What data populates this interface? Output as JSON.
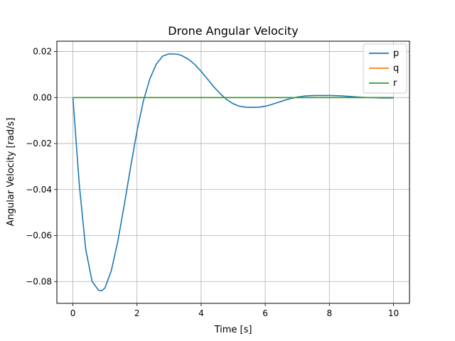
{
  "chart_data": {
    "type": "line",
    "title": "Drone Angular Velocity",
    "xlabel": "Time [s]",
    "ylabel": "Angular Velocity [rad/s]",
    "xlim": [
      -0.5,
      10.5
    ],
    "ylim": [
      -0.0895,
      0.0245
    ],
    "xticks": [
      0,
      2,
      4,
      6,
      8,
      10
    ],
    "xtick_labels": [
      "0",
      "2",
      "4",
      "6",
      "8",
      "10"
    ],
    "yticks": [
      0.02,
      0.0,
      -0.02,
      -0.04,
      -0.06,
      -0.08
    ],
    "ytick_labels": [
      "0.02",
      "0.00",
      "−0.02",
      "−0.04",
      "−0.06",
      "−0.08"
    ],
    "grid": true,
    "legend_position": "top-right",
    "series": [
      {
        "name": "p",
        "color": "#1f77b4",
        "x": [
          0,
          0.2,
          0.4,
          0.6,
          0.8,
          0.9,
          1.0,
          1.2,
          1.4,
          1.6,
          1.8,
          2.0,
          2.2,
          2.4,
          2.6,
          2.8,
          3.0,
          3.2,
          3.3,
          3.4,
          3.6,
          3.8,
          4.0,
          4.2,
          4.4,
          4.6,
          4.8,
          5.0,
          5.2,
          5.4,
          5.6,
          5.8,
          6.0,
          6.2,
          6.4,
          6.6,
          6.8,
          7.0,
          7.2,
          7.4,
          7.6,
          7.8,
          8.0,
          8.2,
          8.4,
          8.6,
          8.8,
          9.0,
          9.2,
          9.4,
          9.6,
          9.8,
          10.0
        ],
        "values": [
          0.0,
          -0.038,
          -0.066,
          -0.08,
          -0.0838,
          -0.084,
          -0.0828,
          -0.0752,
          -0.0626,
          -0.0469,
          -0.0302,
          -0.0145,
          -0.0014,
          0.0081,
          0.0145,
          0.018,
          0.019,
          0.0189,
          0.0187,
          0.0182,
          0.0167,
          0.0144,
          0.0114,
          0.008,
          0.0046,
          0.0016,
          -0.0009,
          -0.0027,
          -0.0038,
          -0.0042,
          -0.0043,
          -0.0042,
          -0.0038,
          -0.003,
          -0.0021,
          -0.0012,
          -0.0004,
          0.0002,
          0.0006,
          0.0008,
          0.0009,
          0.0009,
          0.0009,
          0.0008,
          0.0007,
          0.0005,
          0.0003,
          0.0001,
          0.0,
          -0.0001,
          -0.0002,
          -0.0002,
          -0.0002
        ]
      },
      {
        "name": "q",
        "color": "#ff7f0e",
        "x": [
          0,
          10
        ],
        "values": [
          0.0,
          0.0
        ]
      },
      {
        "name": "r",
        "color": "#2ca02c",
        "x": [
          0,
          10
        ],
        "values": [
          0.0,
          0.0
        ]
      }
    ]
  }
}
